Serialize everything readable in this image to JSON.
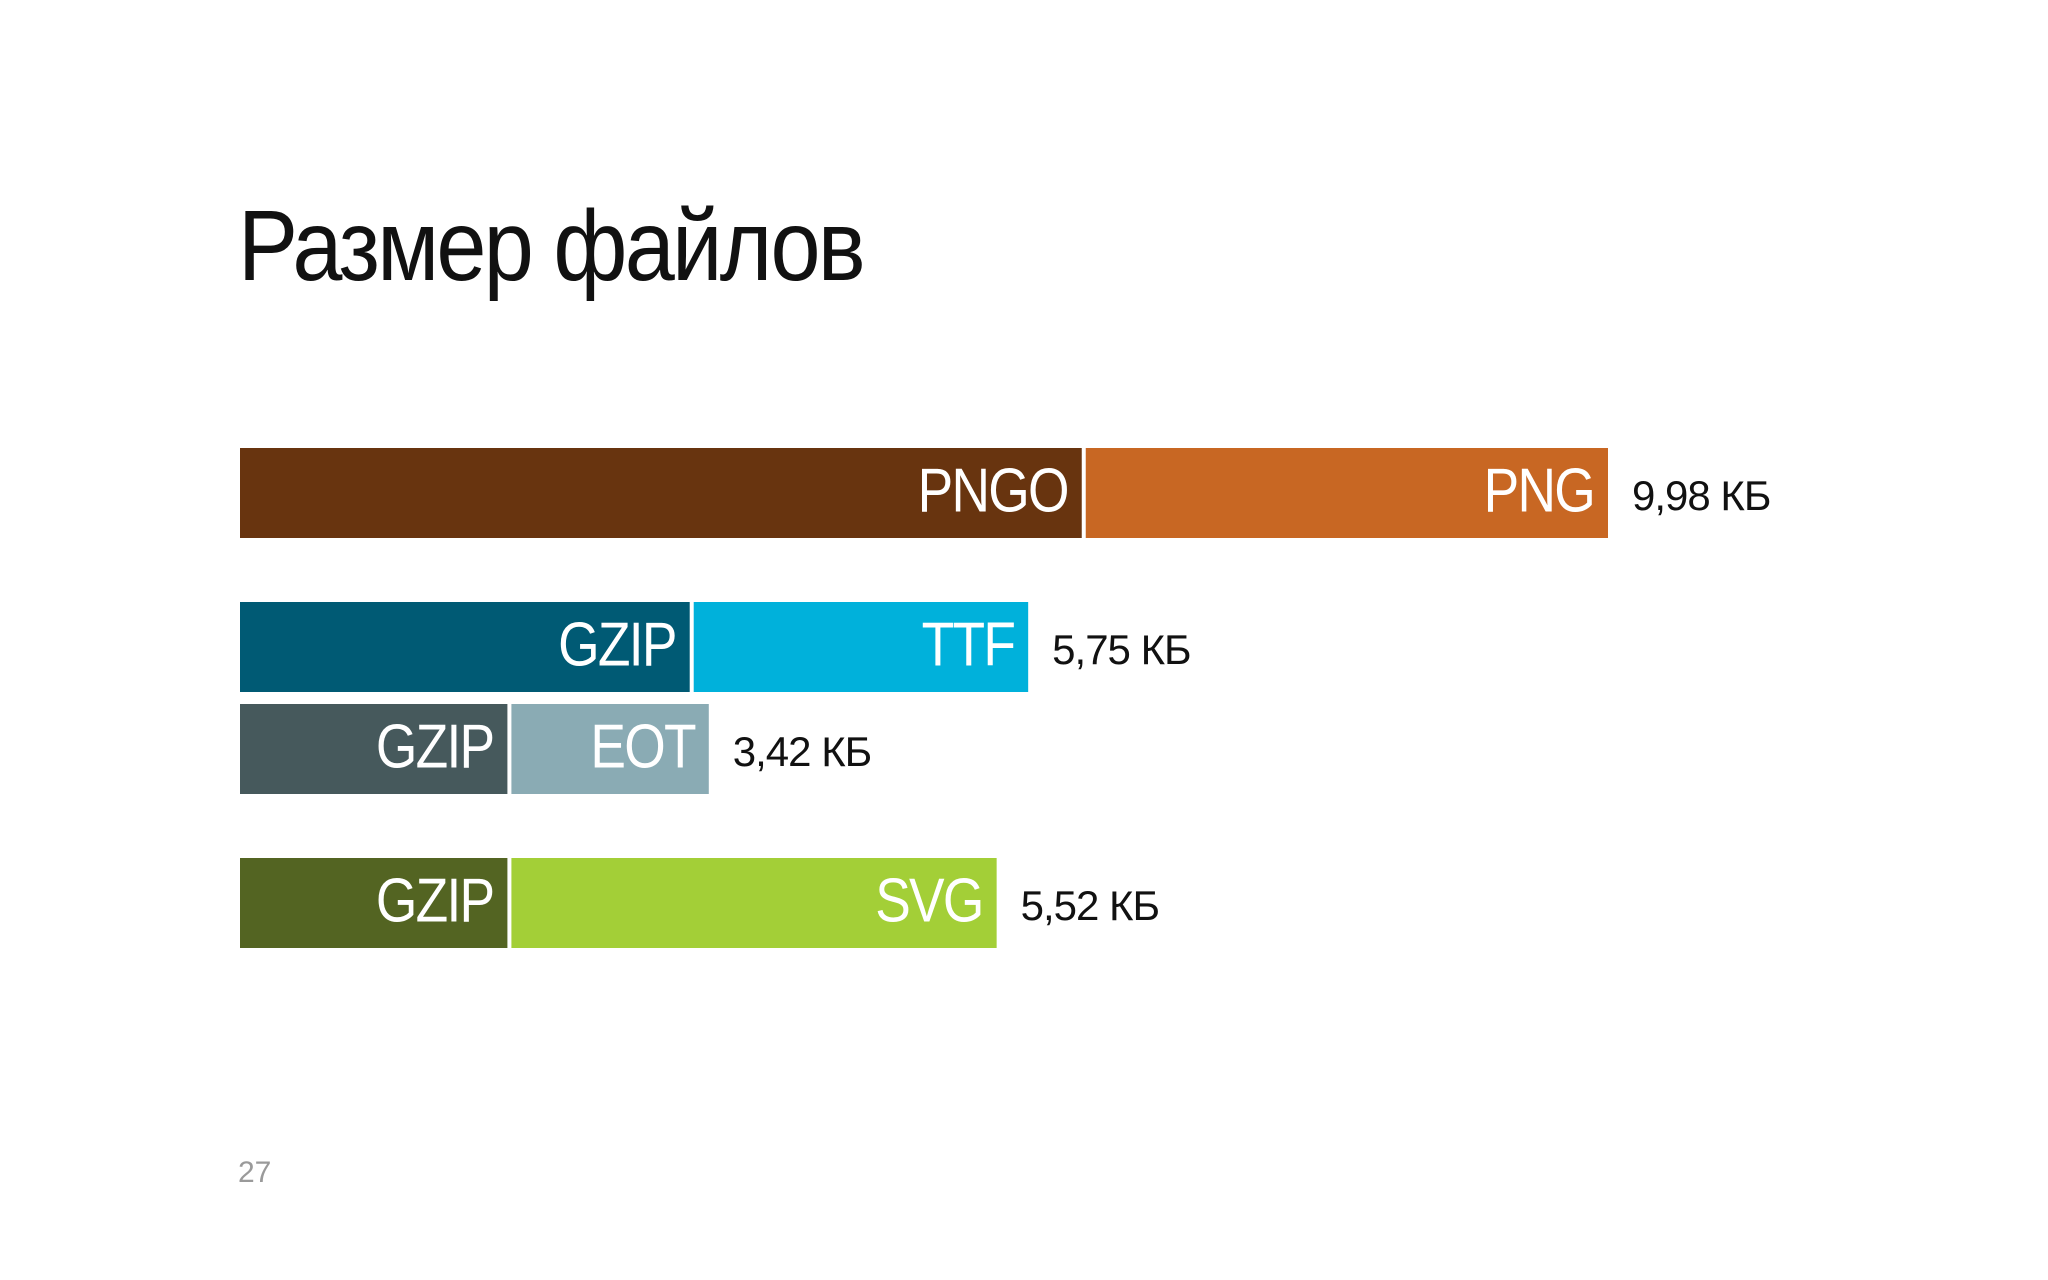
{
  "slide": {
    "title": "Размер файлов",
    "page_number": "27"
  },
  "chart_data": {
    "type": "bar",
    "orientation": "horizontal",
    "stacked": true,
    "unit": "КБ",
    "xlim": [
      0,
      9.98
    ],
    "grid": false,
    "bars": [
      {
        "total": 9.98,
        "total_label": "9,98 КБ",
        "segments": [
          {
            "name": "PNGO",
            "value": 6.17,
            "color": "#68340f"
          },
          {
            "name": "PNG",
            "value": 3.81,
            "color": "#c86723"
          }
        ]
      },
      {
        "total": 5.75,
        "total_label": "5,75 КБ",
        "segments": [
          {
            "name": "GZIP",
            "value": 3.31,
            "color": "#005a74"
          },
          {
            "name": "TTF",
            "value": 2.44,
            "color": "#00b1db"
          }
        ]
      },
      {
        "total": 3.42,
        "total_label": "3,42 КБ",
        "segments": [
          {
            "name": "GZIP",
            "value": 1.98,
            "color": "#46595c"
          },
          {
            "name": "EOT",
            "value": 1.44,
            "color": "#8aabb4"
          }
        ]
      },
      {
        "total": 5.52,
        "total_label": "5,52 КБ",
        "segments": [
          {
            "name": "GZIP",
            "value": 1.98,
            "color": "#536422"
          },
          {
            "name": "SVG",
            "value": 3.54,
            "color": "#a3cf37"
          }
        ]
      }
    ]
  }
}
